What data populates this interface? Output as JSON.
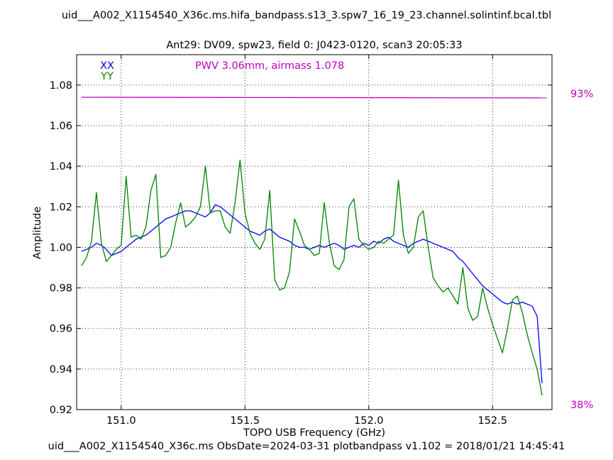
{
  "title": "uid___A002_X1154540_X36c.ms.hifa_bandpass.s13_3.spw7_16_19_23.channel.solintinf.bcal.tbl",
  "footer": "uid___A002_X1154540_X36c.ms  ObsDate=2024-03-31   plotbandpass v1.102 = 2018/01/21 14:45:41",
  "colors": {
    "xx": "#0000ff",
    "yy": "#008000",
    "atm": "#c000c0"
  },
  "chart_data": {
    "type": "line",
    "title": "Ant29: DV09,  spw23,  field 0: J0423-0120,  scan3  20:05:33",
    "xlabel": "TOPO USB Frequency (GHz)",
    "ylabel": "Amplitude",
    "xlim": [
      150.82,
      152.74
    ],
    "ylim": [
      0.92,
      1.095
    ],
    "xticks": [
      151.0,
      151.5,
      152.0,
      152.5
    ],
    "xtick_labels": [
      "151.0",
      "151.5",
      "152.0",
      "152.5"
    ],
    "yticks": [
      0.92,
      0.94,
      0.96,
      0.98,
      1.0,
      1.02,
      1.04,
      1.06,
      1.08
    ],
    "ytick_labels": [
      "0.92",
      "0.94",
      "0.96",
      "0.98",
      "1.00",
      "1.02",
      "1.04",
      "1.06",
      "1.08"
    ],
    "grid": true,
    "legend_position": "top-left",
    "annotation": "PWV 3.06mm, airmass 1.078",
    "atm_scale_top": "93%",
    "atm_scale_bottom": "38%",
    "series": [
      {
        "name": "XX",
        "x": [
          150.84,
          150.86,
          150.88,
          150.9,
          150.92,
          150.94,
          150.96,
          150.98,
          151.0,
          151.02,
          151.04,
          151.06,
          151.08,
          151.1,
          151.12,
          151.14,
          151.16,
          151.18,
          151.2,
          151.22,
          151.24,
          151.26,
          151.28,
          151.3,
          151.32,
          151.34,
          151.36,
          151.38,
          151.4,
          151.42,
          151.44,
          151.46,
          151.48,
          151.5,
          151.52,
          151.54,
          151.56,
          151.58,
          151.6,
          151.62,
          151.64,
          151.66,
          151.68,
          151.7,
          151.72,
          151.74,
          151.76,
          151.78,
          151.8,
          151.82,
          151.84,
          151.86,
          151.88,
          151.9,
          151.92,
          151.94,
          151.96,
          151.98,
          152.0,
          152.02,
          152.04,
          152.06,
          152.08,
          152.1,
          152.12,
          152.14,
          152.16,
          152.18,
          152.2,
          152.22,
          152.24,
          152.26,
          152.28,
          152.3,
          152.32,
          152.34,
          152.36,
          152.38,
          152.4,
          152.42,
          152.44,
          152.46,
          152.48,
          152.5,
          152.52,
          152.54,
          152.56,
          152.58,
          152.6,
          152.62,
          152.64,
          152.66,
          152.68,
          152.7
        ],
        "y": [
          0.998,
          0.999,
          1.0,
          1.002,
          1.001,
          0.999,
          0.996,
          0.997,
          0.998,
          1.0,
          1.002,
          1.004,
          1.005,
          1.006,
          1.008,
          1.01,
          1.012,
          1.014,
          1.015,
          1.016,
          1.017,
          1.018,
          1.018,
          1.017,
          1.016,
          1.015,
          1.017,
          1.021,
          1.02,
          1.018,
          1.016,
          1.014,
          1.012,
          1.01,
          1.008,
          1.007,
          1.006,
          1.008,
          1.009,
          1.007,
          1.005,
          1.004,
          1.003,
          1.001,
          1.0,
          1.0,
          0.999,
          1.0,
          1.001,
          1.0,
          1.001,
          1.002,
          1.001,
          0.999,
          1.0,
          1.001,
          1.0,
          1.002,
          1.001,
          1.003,
          1.002,
          1.004,
          1.005,
          1.003,
          1.002,
          1.001,
          1.0,
          1.002,
          1.003,
          1.004,
          1.003,
          1.002,
          1.001,
          1.0,
          0.999,
          0.998,
          0.995,
          0.993,
          0.99,
          0.987,
          0.984,
          0.981,
          0.979,
          0.977,
          0.975,
          0.973,
          0.972,
          0.973,
          0.972,
          0.973,
          0.972,
          0.971,
          0.966,
          0.933
        ]
      },
      {
        "name": "YY",
        "x": [
          150.84,
          150.86,
          150.88,
          150.9,
          150.92,
          150.94,
          150.96,
          150.98,
          151.0,
          151.02,
          151.04,
          151.06,
          151.08,
          151.1,
          151.12,
          151.14,
          151.16,
          151.18,
          151.2,
          151.22,
          151.24,
          151.26,
          151.28,
          151.3,
          151.32,
          151.34,
          151.36,
          151.38,
          151.4,
          151.42,
          151.44,
          151.46,
          151.48,
          151.5,
          151.52,
          151.54,
          151.56,
          151.58,
          151.6,
          151.62,
          151.64,
          151.66,
          151.68,
          151.7,
          151.72,
          151.74,
          151.76,
          151.78,
          151.8,
          151.82,
          151.84,
          151.86,
          151.88,
          151.9,
          151.92,
          151.94,
          151.96,
          151.98,
          152.0,
          152.02,
          152.04,
          152.06,
          152.08,
          152.1,
          152.12,
          152.14,
          152.16,
          152.18,
          152.2,
          152.22,
          152.24,
          152.26,
          152.28,
          152.3,
          152.32,
          152.34,
          152.36,
          152.38,
          152.4,
          152.42,
          152.44,
          152.46,
          152.48,
          152.5,
          152.52,
          152.54,
          152.56,
          152.58,
          152.6,
          152.62,
          152.64,
          152.66,
          152.68,
          152.7
        ],
        "y": [
          0.991,
          0.995,
          1.003,
          1.027,
          1.002,
          0.993,
          0.996,
          0.999,
          1.001,
          1.035,
          1.005,
          1.006,
          1.004,
          1.01,
          1.028,
          1.036,
          0.995,
          0.996,
          1.0,
          1.012,
          1.022,
          1.01,
          1.012,
          1.015,
          1.02,
          1.04,
          1.017,
          1.018,
          1.018,
          1.01,
          1.007,
          1.022,
          1.043,
          1.017,
          1.007,
          1.002,
          0.999,
          1.004,
          1.028,
          0.984,
          0.979,
          0.98,
          0.988,
          1.014,
          1.008,
          1.001,
          0.999,
          0.996,
          0.997,
          1.022,
          1.003,
          0.991,
          0.989,
          0.994,
          1.02,
          1.024,
          1.004,
          1.001,
          0.999,
          1.0,
          1.003,
          1.002,
          1.004,
          1.006,
          1.033,
          1.006,
          0.997,
          1.0,
          1.015,
          1.018,
          1.0,
          0.985,
          0.981,
          0.978,
          0.98,
          0.976,
          0.972,
          0.99,
          0.97,
          0.964,
          0.966,
          0.98,
          0.97,
          0.962,
          0.955,
          0.948,
          0.96,
          0.974,
          0.976,
          0.968,
          0.957,
          0.948,
          0.94,
          0.927
        ]
      },
      {
        "name": "",
        "x": [
          150.84,
          152.72
        ],
        "y": [
          1.074,
          1.0737
        ]
      }
    ]
  }
}
